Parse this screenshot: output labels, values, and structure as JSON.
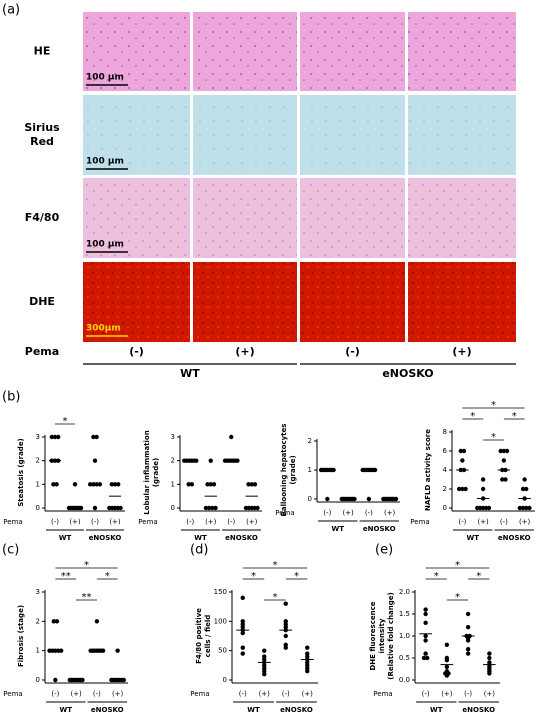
{
  "figure": {
    "panel_label": "(a)",
    "rows": [
      "HE",
      "Sirius Red",
      "F4/80",
      "DHE"
    ],
    "scale_bars": [
      "100 µm",
      "100 µm",
      "100 µm",
      "300µm"
    ],
    "treatment_label": "Pema",
    "columns": [
      "(-)",
      "(+)",
      "(-)",
      "(+)"
    ],
    "groups": [
      "WT",
      "eNOSKO"
    ]
  },
  "chart_data": [
    {
      "type": "scatter",
      "panel_label": "(b)",
      "ylabel": [
        "Steatosis (grade)"
      ],
      "ylim": [
        0,
        3
      ],
      "yticks": [
        0,
        1,
        2,
        3
      ],
      "row_label": "Pema",
      "categories": [
        "(-)",
        "(+)",
        "(-)",
        "(+)"
      ],
      "groups": [
        "WT",
        "eNOSKO"
      ],
      "series": [
        {
          "values": [
            3,
            3,
            3,
            2,
            2,
            2,
            1,
            1
          ],
          "mean": 2
        },
        {
          "values": [
            1,
            0,
            0,
            0,
            0,
            0,
            0,
            0
          ],
          "mean": 0
        },
        {
          "values": [
            3,
            3,
            2,
            1,
            1,
            1,
            1,
            0
          ],
          "mean": 1
        },
        {
          "values": [
            1,
            1,
            1,
            0,
            0,
            0,
            0,
            0
          ],
          "mean": 0.5
        }
      ],
      "annotations": [
        {
          "from": 0,
          "to": 1,
          "label": "*"
        }
      ]
    },
    {
      "type": "scatter",
      "ylabel": [
        "Lobular inflammation",
        "(grade)"
      ],
      "ylim": [
        0,
        3
      ],
      "yticks": [
        0,
        1,
        2,
        3
      ],
      "row_label": "Pema",
      "categories": [
        "(-)",
        "(+)",
        "(-)",
        "(+)"
      ],
      "groups": [
        "WT",
        "eNOSKO"
      ],
      "series": [
        {
          "values": [
            2,
            2,
            2,
            2,
            2,
            2,
            1,
            1
          ],
          "mean": 2
        },
        {
          "values": [
            2,
            1,
            1,
            1,
            0,
            0,
            0,
            0
          ],
          "mean": 0.5
        },
        {
          "values": [
            3,
            2,
            2,
            2,
            2,
            2,
            2,
            2
          ],
          "mean": 2
        },
        {
          "values": [
            1,
            1,
            1,
            0,
            0,
            0,
            0,
            0
          ],
          "mean": 0.5
        }
      ],
      "annotations": []
    },
    {
      "type": "scatter",
      "ylabel": [
        "Ballooning hepatocytes",
        "(grade)"
      ],
      "ylim": [
        0,
        2
      ],
      "yticks": [
        0,
        1,
        2
      ],
      "row_label": "Pema",
      "categories": [
        "(-)",
        "(+)",
        "(-)",
        "(+)"
      ],
      "groups": [
        "WT",
        "eNOSKO"
      ],
      "series": [
        {
          "values": [
            1,
            1,
            1,
            1,
            1,
            1,
            1,
            0
          ],
          "mean": 1
        },
        {
          "values": [
            0,
            0,
            0,
            0,
            0,
            0,
            0,
            0
          ],
          "mean": 0
        },
        {
          "values": [
            1,
            1,
            1,
            1,
            1,
            1,
            1,
            0
          ],
          "mean": 1
        },
        {
          "values": [
            0,
            0,
            0,
            0,
            0,
            0,
            0,
            0
          ],
          "mean": 0
        }
      ],
      "annotations": []
    },
    {
      "type": "scatter",
      "ylabel": [
        "NAFLD activity score"
      ],
      "ylim": [
        0,
        8
      ],
      "yticks": [
        0,
        2,
        4,
        6,
        8
      ],
      "row_label": "Pema",
      "categories": [
        "(-)",
        "(+)",
        "(-)",
        "(+)"
      ],
      "groups": [
        "WT",
        "eNOSKO"
      ],
      "series": [
        {
          "values": [
            6,
            6,
            5,
            4,
            4,
            2,
            2,
            2
          ],
          "mean": 4
        },
        {
          "values": [
            3,
            2,
            1,
            0,
            0,
            0,
            0,
            0
          ],
          "mean": 1
        },
        {
          "values": [
            6,
            6,
            6,
            5,
            4,
            4,
            3,
            3
          ],
          "mean": 4
        },
        {
          "values": [
            3,
            2,
            2,
            1,
            0,
            0,
            0,
            0
          ],
          "mean": 1
        }
      ],
      "annotations": [
        {
          "from": 1,
          "to": 2,
          "label": "*"
        },
        {
          "from": 0,
          "to": 1,
          "label": "*"
        },
        {
          "from": 2,
          "to": 3,
          "label": "*"
        },
        {
          "from": 0,
          "to": 3,
          "label": "*"
        }
      ]
    },
    {
      "type": "scatter",
      "panel_label": "(c)",
      "ylabel": [
        "Fibrosis (stage)"
      ],
      "ylim": [
        0,
        3
      ],
      "yticks": [
        0,
        1,
        2,
        3
      ],
      "row_label": "Pema",
      "categories": [
        "(-)",
        "(+)",
        "(-)",
        "(+)"
      ],
      "groups": [
        "WT",
        "eNOSKO"
      ],
      "series": [
        {
          "values": [
            2,
            2,
            1,
            1,
            1,
            1,
            1,
            0
          ],
          "mean": 1
        },
        {
          "values": [
            0,
            0,
            0,
            0,
            0,
            0,
            0,
            0
          ],
          "mean": 0
        },
        {
          "values": [
            2,
            1,
            1,
            1,
            1,
            1,
            1,
            1
          ],
          "mean": 1
        },
        {
          "values": [
            1,
            0,
            0,
            0,
            0,
            0,
            0,
            0
          ],
          "mean": 0
        }
      ],
      "annotations": [
        {
          "from": 1,
          "to": 2,
          "label": "**"
        },
        {
          "from": 0,
          "to": 1,
          "label": "**"
        },
        {
          "from": 2,
          "to": 3,
          "label": "*"
        },
        {
          "from": 0,
          "to": 3,
          "label": "*"
        }
      ]
    },
    {
      "type": "scatter",
      "panel_label": "(d)",
      "ylabel": [
        "F4/80 positive",
        "cells / field"
      ],
      "ylim": [
        0,
        150
      ],
      "yticks": [
        0,
        50,
        100,
        150
      ],
      "row_label": "Pema",
      "categories": [
        "(-)",
        "(+)",
        "(-)",
        "(+)"
      ],
      "groups": [
        "WT",
        "eNOSKO"
      ],
      "series": [
        {
          "values": [
            140,
            100,
            95,
            90,
            85,
            80,
            55,
            45
          ],
          "mean": 85
        },
        {
          "values": [
            50,
            40,
            35,
            30,
            25,
            20,
            15,
            10
          ],
          "mean": 30
        },
        {
          "values": [
            130,
            100,
            95,
            90,
            85,
            75,
            60,
            55
          ],
          "mean": 85
        },
        {
          "values": [
            55,
            45,
            40,
            35,
            30,
            25,
            20,
            15
          ],
          "mean": 35
        }
      ],
      "annotations": [
        {
          "from": 1,
          "to": 2,
          "label": "*"
        },
        {
          "from": 0,
          "to": 1,
          "label": "*"
        },
        {
          "from": 2,
          "to": 3,
          "label": "*"
        },
        {
          "from": 0,
          "to": 3,
          "label": "*"
        }
      ]
    },
    {
      "type": "scatter",
      "panel_label": "(e)",
      "ylabel": [
        "DHE fluorescence",
        "intensity",
        "(Relative fold change)"
      ],
      "ylim": [
        0,
        2
      ],
      "yticks": [
        {
          "value": 0,
          "label": "0.0"
        },
        {
          "value": 0.5,
          "label": "0.5"
        },
        {
          "value": 1,
          "label": "1.0"
        },
        {
          "value": 1.5,
          "label": "1.5"
        },
        {
          "value": 2,
          "label": "2.0"
        }
      ],
      "row_label": "Pema",
      "categories": [
        "(-)",
        "(+)",
        "(-)",
        "(+)"
      ],
      "groups": [
        "WT",
        "eNOSKO"
      ],
      "series": [
        {
          "values": [
            1.6,
            1.5,
            1.3,
            1.0,
            0.9,
            0.6,
            0.5,
            0.5
          ],
          "mean": 1.05
        },
        {
          "values": [
            0.8,
            0.5,
            0.45,
            0.3,
            0.2,
            0.15,
            0.15,
            0.1
          ],
          "mean": 0.35
        },
        {
          "values": [
            1.5,
            1.2,
            1.0,
            1.0,
            0.95,
            0.9,
            0.7,
            0.6
          ],
          "mean": 1.0
        },
        {
          "values": [
            0.6,
            0.5,
            0.4,
            0.35,
            0.3,
            0.25,
            0.2,
            0.15
          ],
          "mean": 0.35
        }
      ],
      "annotations": [
        {
          "from": 1,
          "to": 2,
          "label": "*"
        },
        {
          "from": 0,
          "to": 1,
          "label": "*"
        },
        {
          "from": 2,
          "to": 3,
          "label": "*"
        },
        {
          "from": 0,
          "to": 3,
          "label": "*"
        }
      ]
    }
  ]
}
